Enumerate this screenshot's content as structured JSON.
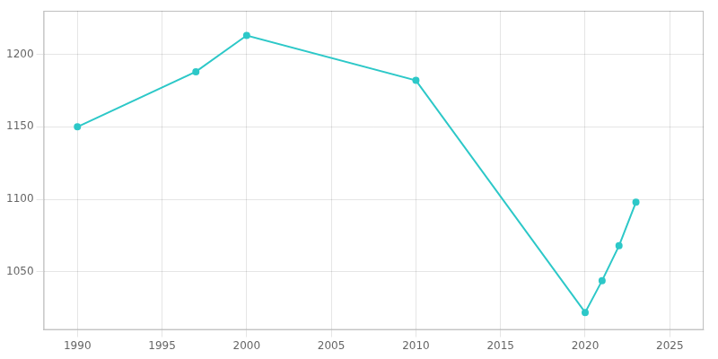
{
  "chart_data": {
    "type": "line",
    "x": [
      1990,
      1997,
      2000,
      2010,
      2020,
      2021,
      2022,
      2023
    ],
    "values": [
      1150,
      1188,
      1213,
      1182,
      1022,
      1044,
      1068,
      1098
    ],
    "color": "#2dc8c8",
    "marker": "circle",
    "xlim": [
      1988,
      2027
    ],
    "ylim": [
      1010,
      1230
    ],
    "xticks": [
      1990,
      1995,
      2000,
      2005,
      2010,
      2015,
      2020,
      2025
    ],
    "yticks": [
      1050,
      1100,
      1150,
      1200
    ],
    "grid": true
  }
}
